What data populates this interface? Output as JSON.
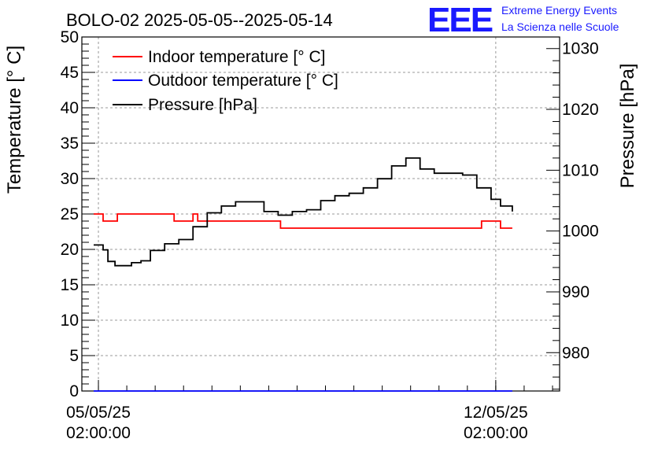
{
  "chart_data": {
    "type": "line",
    "title": "BOLO-02 2025-05-05--2025-05-14",
    "brand": {
      "logo": "EEE",
      "line1": "Extreme Energy Events",
      "line2": "La Scienza nelle Scuole",
      "color": "#1a1aff"
    },
    "x_axis": {
      "type": "datetime",
      "range": [
        "2025-05-04 19:00",
        "2025-05-13 05:00"
      ],
      "ticks": [
        {
          "value": "2025-05-05 02:00",
          "date": "05/05/25",
          "time": "02:00:00"
        },
        {
          "value": "2025-05-12 02:00",
          "date": "12/05/25",
          "time": "02:00:00"
        }
      ],
      "grid": true
    },
    "y_left": {
      "label": "Temperature [° C]",
      "ylim": [
        0,
        50
      ],
      "ticks": [
        0,
        5,
        10,
        15,
        20,
        25,
        30,
        35,
        40,
        45,
        50
      ],
      "grid": true
    },
    "y_right": {
      "label": "Pressure [hPa]",
      "ylim": [
        973.7,
        1031.9
      ],
      "ticks": [
        980,
        990,
        1000,
        1010,
        1020,
        1030
      ]
    },
    "legend": {
      "placement": "top-left",
      "entries": [
        {
          "label": "Indoor temperature [° C]",
          "color": "#ff0000"
        },
        {
          "label": "Outdoor temperature [° C]",
          "color": "#0000ff"
        },
        {
          "label": "Pressure [hPa]",
          "color": "#000000"
        }
      ]
    },
    "series": [
      {
        "name": "Indoor temperature [° C]",
        "axis": "left",
        "color": "#ff0000",
        "x": [
          "2025-05-05 00:00",
          "2025-05-05 02:00",
          "2025-05-05 04:00",
          "2025-05-05 08:00",
          "2025-05-05 10:00",
          "2025-05-05 14:00",
          "2025-05-05 20:00",
          "2025-05-06 02:00",
          "2025-05-06 10:00",
          "2025-05-06 16:00",
          "2025-05-06 18:00",
          "2025-05-06 20:00",
          "2025-05-07 02:00",
          "2025-05-07 12:00",
          "2025-05-07 22:00",
          "2025-05-08 05:00",
          "2025-05-08 07:00",
          "2025-05-08 12:00",
          "2025-05-09 00:00",
          "2025-05-09 12:00",
          "2025-05-10 00:00",
          "2025-05-10 12:00",
          "2025-05-11 00:00",
          "2025-05-11 14:00",
          "2025-05-11 18:00",
          "2025-05-11 20:00",
          "2025-05-12 00:00",
          "2025-05-12 02:00",
          "2025-05-12 04:00",
          "2025-05-12 06:00",
          "2025-05-12 09:00"
        ],
        "y": [
          25,
          25,
          24,
          24,
          25,
          25,
          25,
          25,
          24,
          24,
          25,
          24,
          24,
          24,
          24,
          24,
          23,
          23,
          23,
          23,
          23,
          23,
          23,
          23,
          23,
          24,
          24,
          24,
          23,
          23,
          23
        ]
      },
      {
        "name": "Outdoor temperature [° C]",
        "axis": "left",
        "color": "#0000ff",
        "x": [
          "2025-05-05 00:00",
          "2025-05-12 09:00"
        ],
        "y": [
          0,
          0
        ]
      },
      {
        "name": "Pressure [hPa]",
        "axis": "right",
        "color": "#000000",
        "x": [
          "2025-05-05 00:00",
          "2025-05-05 04:00",
          "2025-05-05 06:00",
          "2025-05-05 09:00",
          "2025-05-05 12:00",
          "2025-05-05 16:00",
          "2025-05-05 20:00",
          "2025-05-06 00:00",
          "2025-05-06 06:00",
          "2025-05-06 12:00",
          "2025-05-06 18:00",
          "2025-05-07 00:00",
          "2025-05-07 06:00",
          "2025-05-07 12:00",
          "2025-05-07 18:00",
          "2025-05-08 00:00",
          "2025-05-08 03:00",
          "2025-05-08 06:00",
          "2025-05-08 12:00",
          "2025-05-08 18:00",
          "2025-05-09 00:00",
          "2025-05-09 06:00",
          "2025-05-09 12:00",
          "2025-05-09 18:00",
          "2025-05-10 00:00",
          "2025-05-10 06:00",
          "2025-05-10 12:00",
          "2025-05-10 18:00",
          "2025-05-11 00:00",
          "2025-05-11 06:00",
          "2025-05-11 12:00",
          "2025-05-11 18:00",
          "2025-05-12 00:00",
          "2025-05-12 04:00",
          "2025-05-12 09:00"
        ],
        "y": [
          997.7,
          996.9,
          995.0,
          994.3,
          994.3,
          994.8,
          995.1,
          996.8,
          997.9,
          998.6,
          1000.7,
          1003.0,
          1004.1,
          1004.8,
          1004.8,
          1003.2,
          1003.2,
          1002.6,
          1003.2,
          1003.5,
          1005.0,
          1005.8,
          1006.2,
          1007.1,
          1008.6,
          1010.7,
          1012.0,
          1010.2,
          1009.5,
          1009.5,
          1009.2,
          1007.1,
          1005.2,
          1004.1,
          1003.2
        ]
      }
    ]
  }
}
